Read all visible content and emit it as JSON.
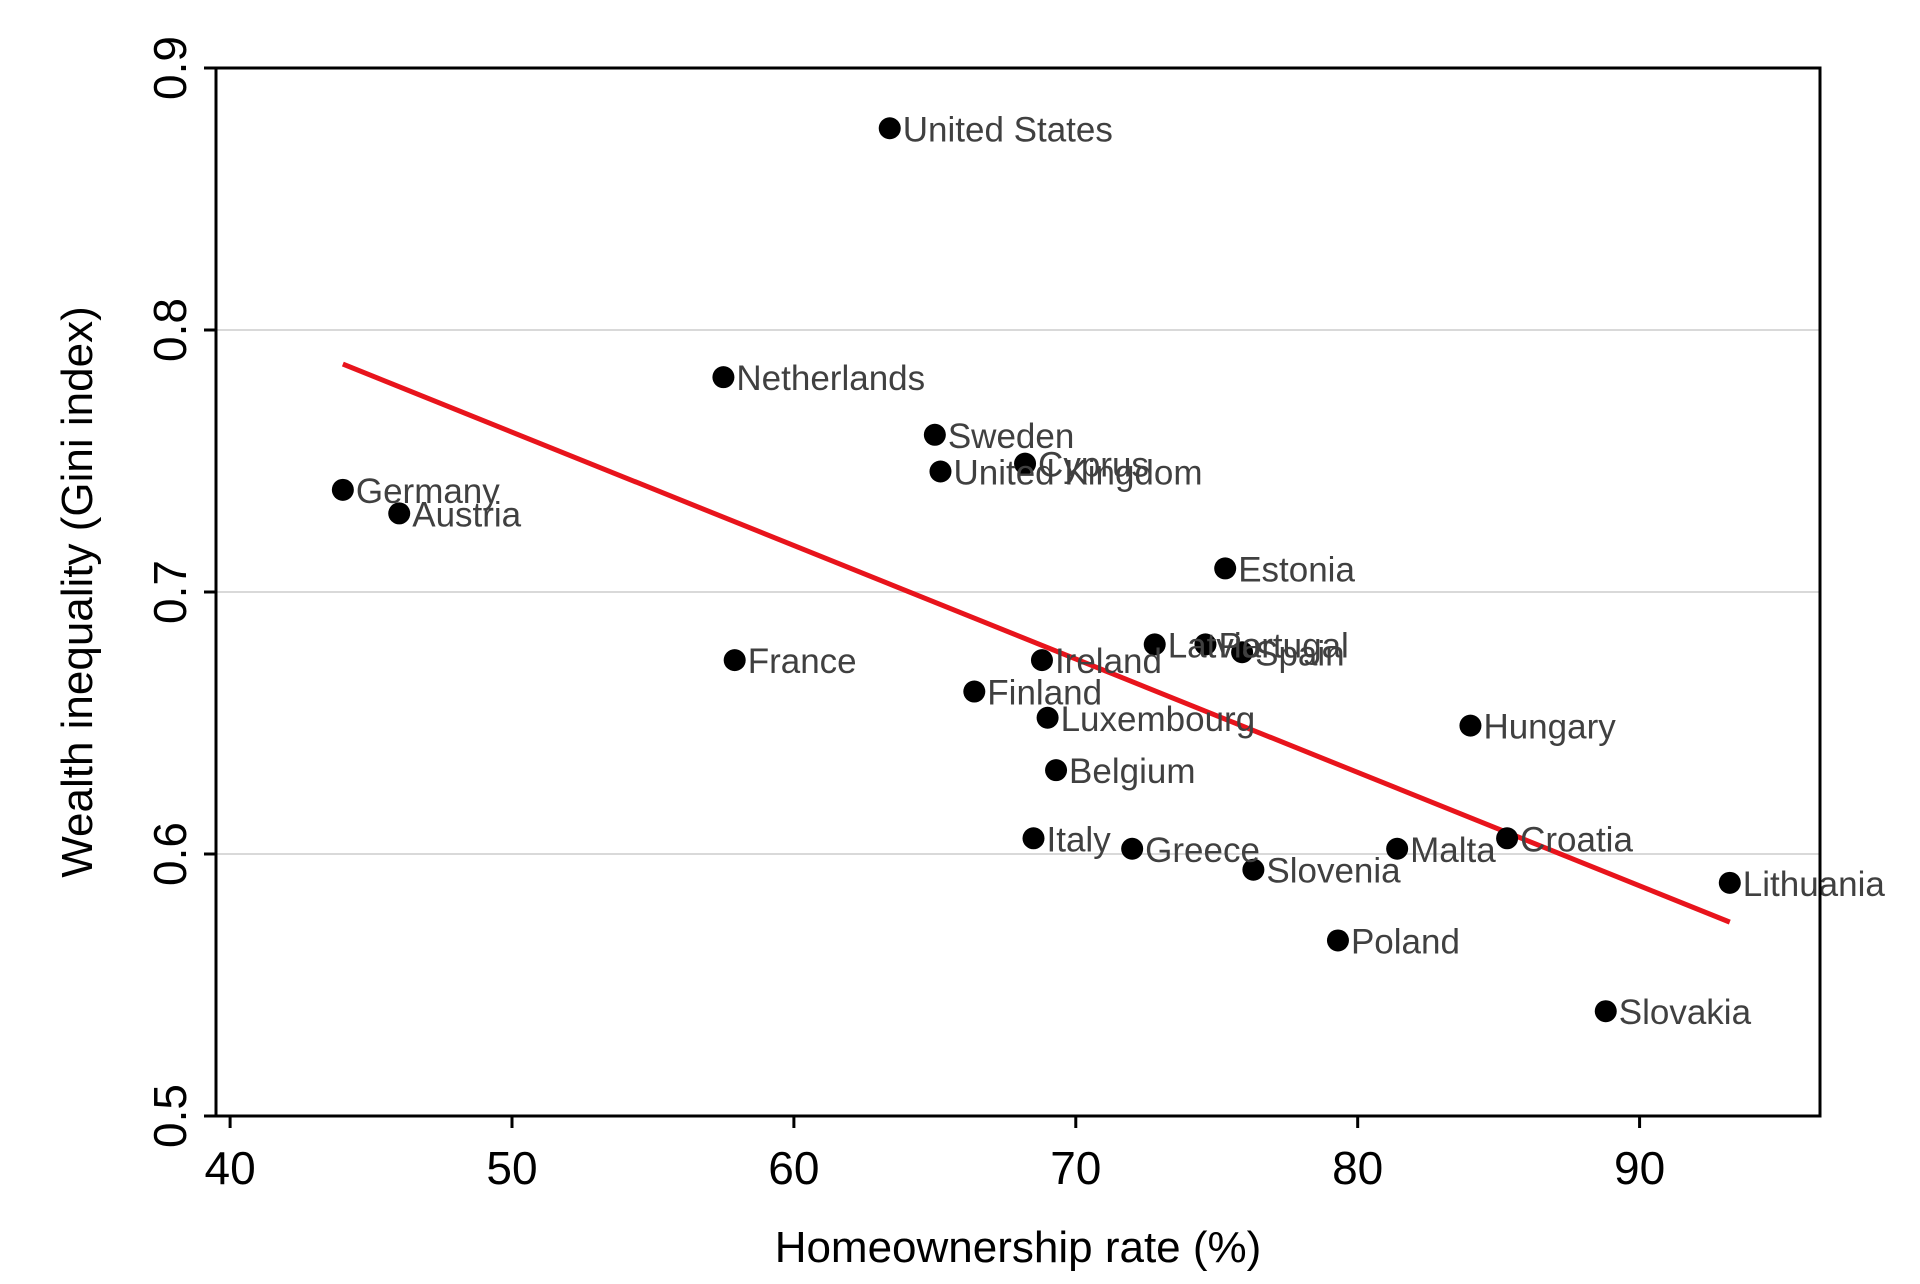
{
  "chart_data": {
    "type": "scatter",
    "xlabel": "Homeownership rate (%)",
    "ylabel": "Wealth inequality (Gini index)",
    "xlim": [
      39.5,
      96.4
    ],
    "ylim": [
      0.5,
      0.9
    ],
    "xticks": [
      "40",
      "50",
      "60",
      "70",
      "80",
      "90"
    ],
    "xtick_values": [
      40,
      50,
      60,
      70,
      80,
      90
    ],
    "yticks": [
      "0.5",
      "0.6",
      "0.7",
      "0.8",
      "0.9"
    ],
    "ytick_values": [
      0.5,
      0.6,
      0.7,
      0.8,
      0.9
    ],
    "grid": "horizontal",
    "colors": {
      "points": "#000000",
      "fit_line": "#e8141c",
      "grid": "#d9d9d9",
      "labels": "#404040"
    },
    "points": [
      {
        "label": "United States",
        "x": 63.4,
        "y": 0.877
      },
      {
        "label": "Netherlands",
        "x": 57.5,
        "y": 0.782
      },
      {
        "label": "Sweden",
        "x": 65.0,
        "y": 0.76
      },
      {
        "label": "Cyprus",
        "x": 68.2,
        "y": 0.749
      },
      {
        "label": "United Kingdom",
        "x": 65.2,
        "y": 0.746
      },
      {
        "label": "Germany",
        "x": 44.0,
        "y": 0.739
      },
      {
        "label": "Austria",
        "x": 46.0,
        "y": 0.73
      },
      {
        "label": "Estonia",
        "x": 75.3,
        "y": 0.709
      },
      {
        "label": "Latvia",
        "x": 72.8,
        "y": 0.68
      },
      {
        "label": "Portugal",
        "x": 74.6,
        "y": 0.68
      },
      {
        "label": "Spain",
        "x": 75.9,
        "y": 0.677
      },
      {
        "label": "France",
        "x": 57.9,
        "y": 0.674
      },
      {
        "label": "Ireland",
        "x": 68.8,
        "y": 0.674
      },
      {
        "label": "Finland",
        "x": 66.4,
        "y": 0.662
      },
      {
        "label": "Luxembourg",
        "x": 69.0,
        "y": 0.652
      },
      {
        "label": "Hungary",
        "x": 84.0,
        "y": 0.649
      },
      {
        "label": "Belgium",
        "x": 69.3,
        "y": 0.632
      },
      {
        "label": "Italy",
        "x": 68.5,
        "y": 0.606
      },
      {
        "label": "Greece",
        "x": 72.0,
        "y": 0.602
      },
      {
        "label": "Malta",
        "x": 81.4,
        "y": 0.602
      },
      {
        "label": "Croatia",
        "x": 85.3,
        "y": 0.606
      },
      {
        "label": "Slovenia",
        "x": 76.3,
        "y": 0.594
      },
      {
        "label": "Lithuania",
        "x": 93.2,
        "y": 0.589
      },
      {
        "label": "Poland",
        "x": 79.3,
        "y": 0.567
      },
      {
        "label": "Slovakia",
        "x": 88.8,
        "y": 0.54
      }
    ],
    "fit_line": {
      "x": [
        44.0,
        93.2
      ],
      "y": [
        0.787,
        0.574
      ]
    }
  }
}
